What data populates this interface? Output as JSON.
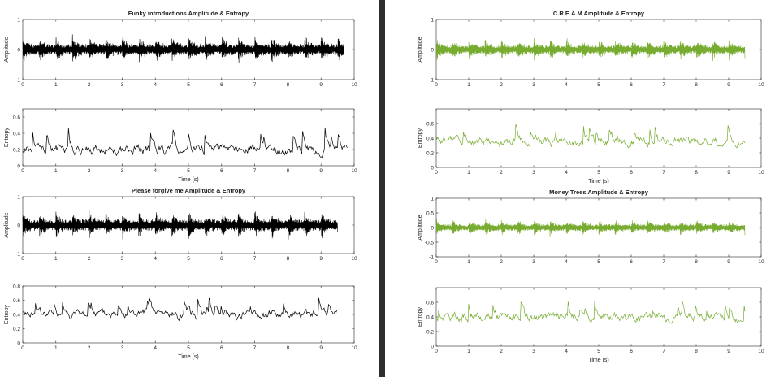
{
  "chart_data": [
    {
      "type": "line",
      "panel": "left-top",
      "title": "Funky introductions Amplitude & Entropy",
      "ylabel": "Amplitude",
      "xlabel": "",
      "xlim": [
        0,
        10
      ],
      "ylim": [
        -1,
        1
      ],
      "xticks": [
        "0",
        "1",
        "2",
        "3",
        "4",
        "5",
        "6",
        "7",
        "8",
        "9",
        "10"
      ],
      "yticks": [
        "1",
        "0",
        "-1"
      ],
      "color": "#000000",
      "duration": 9.7,
      "kind": "amplitude",
      "seed": 11,
      "envelope": 0.55
    },
    {
      "type": "line",
      "panel": "left-mid1",
      "title": "",
      "ylabel": "Entropy",
      "xlabel": "Time (s)",
      "xlim": [
        0,
        10
      ],
      "ylim": [
        0,
        0.7
      ],
      "xticks": [
        "0",
        "1",
        "2",
        "3",
        "4",
        "5",
        "6",
        "7",
        "8",
        "9",
        "10"
      ],
      "yticks": [
        "0.6",
        "0.4",
        "0.2",
        "0"
      ],
      "color": "#000000",
      "duration": 9.8,
      "kind": "entropy",
      "seed": 21,
      "base": 0.2,
      "peak": 0.6
    },
    {
      "type": "line",
      "panel": "left-mid2",
      "title": "Please forgive me Amplitude & Entropy",
      "ylabel": "Amplitude",
      "xlabel": "",
      "xlim": [
        0,
        10
      ],
      "ylim": [
        -1,
        1
      ],
      "xticks": [
        "0",
        "1",
        "2",
        "3",
        "4",
        "5",
        "6",
        "7",
        "8",
        "9",
        "10"
      ],
      "yticks": [
        "1",
        "0",
        "-1"
      ],
      "color": "#000000",
      "duration": 9.5,
      "kind": "amplitude",
      "seed": 31,
      "envelope": 0.6
    },
    {
      "type": "line",
      "panel": "left-bot",
      "title": "",
      "ylabel": "Entropy",
      "xlabel": "Time (s)",
      "xlim": [
        0,
        10
      ],
      "ylim": [
        0,
        0.8
      ],
      "xticks": [
        "0",
        "1",
        "2",
        "3",
        "4",
        "5",
        "6",
        "7",
        "8",
        "9",
        "10"
      ],
      "yticks": [
        "0.8",
        "0.6",
        "0.4",
        "0.2",
        "0"
      ],
      "color": "#000000",
      "duration": 9.5,
      "kind": "entropy",
      "seed": 41,
      "base": 0.4,
      "peak": 0.75
    },
    {
      "type": "line",
      "panel": "right-top",
      "title": "C.R.E.A.M Amplitude & Entropy",
      "ylabel": "Amplitude",
      "xlabel": "",
      "xlim": [
        0,
        10
      ],
      "ylim": [
        -1,
        1
      ],
      "xticks": [
        "0",
        "1",
        "2",
        "3",
        "4",
        "5",
        "6",
        "7",
        "8",
        "9",
        "10"
      ],
      "yticks": [
        "1",
        "0",
        "-1"
      ],
      "color": "#77AC30",
      "duration": 9.5,
      "kind": "amplitude",
      "seed": 51,
      "envelope": 0.45
    },
    {
      "type": "line",
      "panel": "right-mid1",
      "title": "",
      "ylabel": "Entropy",
      "xlabel": "Time (s)",
      "xlim": [
        0,
        10
      ],
      "ylim": [
        0,
        0.8
      ],
      "xticks": [
        "0",
        "1",
        "2",
        "3",
        "4",
        "5",
        "6",
        "7",
        "8",
        "9",
        "10"
      ],
      "yticks": [
        "0.6",
        "0.4",
        "0.2",
        "0"
      ],
      "color": "#77AC30",
      "duration": 9.5,
      "kind": "entropy",
      "seed": 61,
      "base": 0.35,
      "peak": 0.7
    },
    {
      "type": "line",
      "panel": "right-mid2",
      "title": "Money Trees Amplitude & Entropy",
      "ylabel": "Amplitude",
      "xlabel": "",
      "xlim": [
        0,
        10
      ],
      "ylim": [
        -1,
        1
      ],
      "xticks": [
        "0",
        "1",
        "2",
        "3",
        "4",
        "5",
        "6",
        "7",
        "8",
        "9",
        "10"
      ],
      "yticks": [
        "1",
        "0.5",
        "0",
        "-0.5",
        "-1"
      ],
      "color": "#77AC30",
      "duration": 9.5,
      "kind": "amplitude",
      "seed": 71,
      "envelope": 0.35
    },
    {
      "type": "line",
      "panel": "right-bot",
      "title": "",
      "ylabel": "Entropy",
      "xlabel": "Time (s)",
      "xlim": [
        0,
        10
      ],
      "ylim": [
        0,
        0.8
      ],
      "xticks": [
        "0",
        "1",
        "2",
        "3",
        "4",
        "5",
        "6",
        "7",
        "8",
        "9",
        "10"
      ],
      "yticks": [
        "0.6",
        "0.4",
        "0.2",
        "0"
      ],
      "color": "#77AC30",
      "duration": 9.5,
      "kind": "entropy",
      "seed": 81,
      "base": 0.4,
      "peak": 0.72
    }
  ]
}
